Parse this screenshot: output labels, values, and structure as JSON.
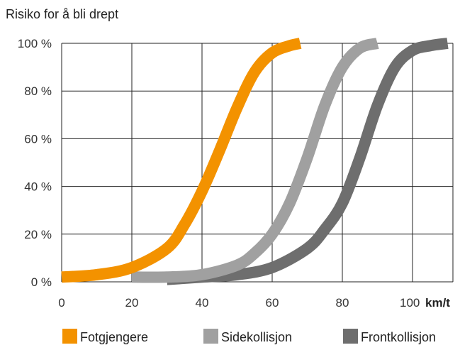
{
  "chart_data": {
    "type": "line",
    "title": "Risiko for å bli drept",
    "x_unit": "km/t",
    "xlim": [
      0,
      110
    ],
    "ylim": [
      0,
      100
    ],
    "x_ticks": [
      0,
      20,
      40,
      60,
      80,
      100
    ],
    "x_tick_labels": [
      "0",
      "20",
      "40",
      "60",
      "80",
      "100"
    ],
    "y_ticks": [
      0,
      20,
      40,
      60,
      80,
      100
    ],
    "y_tick_labels": [
      "0 %",
      "20 %",
      "40 %",
      "60 %",
      "80 %",
      "100 %"
    ],
    "grid": true,
    "legend_position": "bottom",
    "series": [
      {
        "name": "Fotgjengere",
        "color": "#F39200",
        "x": [
          0,
          10,
          20,
          30,
          35,
          40,
          45,
          50,
          55,
          60,
          65,
          68
        ],
        "y": [
          2,
          3,
          6,
          14,
          24,
          38,
          55,
          73,
          88,
          96,
          99,
          100
        ]
      },
      {
        "name": "Sidekollisjon",
        "color": "#A0A0A0",
        "x": [
          20,
          30,
          40,
          50,
          55,
          60,
          65,
          70,
          75,
          80,
          85,
          90
        ],
        "y": [
          2,
          2,
          3,
          7,
          12,
          20,
          33,
          52,
          74,
          90,
          98,
          100
        ]
      },
      {
        "name": "Frontkollisjon",
        "color": "#6E6E6E",
        "x": [
          30,
          40,
          50,
          60,
          70,
          75,
          80,
          85,
          90,
          95,
          100,
          105,
          110
        ],
        "y": [
          1,
          2,
          3,
          6,
          14,
          22,
          33,
          52,
          74,
          90,
          97,
          99,
          100
        ]
      }
    ]
  }
}
